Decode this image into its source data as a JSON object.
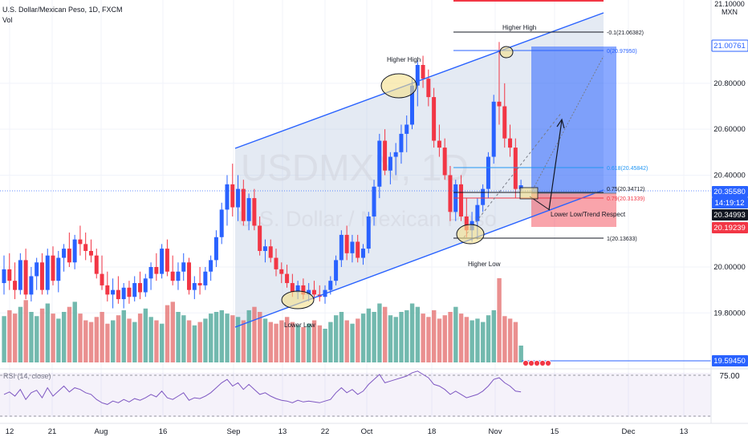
{
  "header": {
    "symbol_line": "U.S. Dollar/Mexican Peso, 1D, FXCM",
    "vol_label": "Vol"
  },
  "watermark": {
    "ticker": "USDMXN, 1D",
    "name": "U.S. Dollar / Mexican Peso"
  },
  "annotations": {
    "higher_high_1": "Higher High",
    "higher_high_2": "Higher High",
    "lower_low": "Lower Low",
    "higher_low": "Higher Low",
    "lower_low_trend": "Lower Low/Trend Respect"
  },
  "fib_labels": [
    {
      "text": "-0.1(21.06382)",
      "value": 21.06382
    },
    {
      "text": "0(20.97950)",
      "value": 20.9795
    },
    {
      "text": "0.618(20.45842)",
      "value": 20.45842
    },
    {
      "text": "0.75(20.34712)",
      "value": 20.34712
    },
    {
      "text": "0.79(20.31339)",
      "value": 20.31339
    },
    {
      "text": "1(20.13633)",
      "value": 20.13633
    }
  ],
  "price_axis": {
    "currency": "MXN",
    "top_label": "21.10000",
    "ticks": [
      "20.80000",
      "20.60000",
      "20.40000",
      "20.00000",
      "19.80000"
    ],
    "tick_values": [
      20.8,
      20.6,
      20.4,
      20.0,
      19.8
    ],
    "tags": [
      {
        "text": "21.00761",
        "value": 21.00761,
        "bg": "#2962ff",
        "fg": "#ffffff",
        "style": "outline"
      },
      {
        "text": "20.35580",
        "value": 20.3558,
        "bg": "#2962ff",
        "fg": "#ffffff",
        "style": "fill"
      },
      {
        "text": "14:19:12",
        "value": 20.3558,
        "bg": "#2962ff",
        "fg": "#ffffff",
        "style": "fill-sub"
      },
      {
        "text": "20.34993",
        "value": 20.34993,
        "bg": "#131722",
        "fg": "#ffffff",
        "style": "fill"
      },
      {
        "text": "20.19239",
        "value": 20.19239,
        "bg": "#f23645",
        "fg": "#ffffff",
        "style": "fill"
      },
      {
        "text": "19.59450",
        "value": 19.5945,
        "bg": "#2962ff",
        "fg": "#ffffff",
        "style": "fill"
      }
    ]
  },
  "time_axis": {
    "labels": [
      "12",
      "21",
      "Aug",
      "16",
      "Sep",
      "13",
      "22",
      "Oct",
      "18",
      "Nov",
      "15",
      "Dec",
      "13"
    ]
  },
  "rsi": {
    "label": "RSI (14, close)",
    "level": "75.00"
  },
  "colors": {
    "up": "#2962ff",
    "down": "#f23645",
    "vol_up": "#4fa79a",
    "vol_down": "#e57373",
    "channel": "#2962ff",
    "rsi_line": "#7e57c2",
    "highlight": "#f5e08a"
  },
  "chart_data": {
    "type": "candlestick",
    "title": "U.S. Dollar/Mexican Peso, 1D, FXCM",
    "y_range": [
      19.55,
      21.12
    ],
    "candles": [
      {
        "o": 19.93,
        "h": 20.05,
        "l": 19.88,
        "c": 19.99
      },
      {
        "o": 19.99,
        "h": 20.06,
        "l": 19.9,
        "c": 19.94
      },
      {
        "o": 19.94,
        "h": 20.02,
        "l": 19.86,
        "c": 19.9
      },
      {
        "o": 19.9,
        "h": 20.06,
        "l": 19.88,
        "c": 20.03
      },
      {
        "o": 20.03,
        "h": 20.08,
        "l": 19.86,
        "c": 19.88
      },
      {
        "o": 19.88,
        "h": 20.0,
        "l": 19.85,
        "c": 19.96
      },
      {
        "o": 19.96,
        "h": 20.04,
        "l": 19.9,
        "c": 20.02
      },
      {
        "o": 20.02,
        "h": 20.06,
        "l": 19.88,
        "c": 19.9
      },
      {
        "o": 19.9,
        "h": 20.08,
        "l": 19.88,
        "c": 20.05
      },
      {
        "o": 20.05,
        "h": 20.09,
        "l": 19.92,
        "c": 19.94
      },
      {
        "o": 19.94,
        "h": 20.07,
        "l": 19.89,
        "c": 20.04
      },
      {
        "o": 20.04,
        "h": 20.1,
        "l": 19.98,
        "c": 20.08
      },
      {
        "o": 20.08,
        "h": 20.15,
        "l": 20.0,
        "c": 20.02
      },
      {
        "o": 20.02,
        "h": 20.14,
        "l": 19.99,
        "c": 20.12
      },
      {
        "o": 20.12,
        "h": 20.18,
        "l": 20.05,
        "c": 20.1
      },
      {
        "o": 20.1,
        "h": 20.15,
        "l": 20.03,
        "c": 20.07
      },
      {
        "o": 20.07,
        "h": 20.12,
        "l": 20.02,
        "c": 20.05
      },
      {
        "o": 20.05,
        "h": 20.08,
        "l": 19.95,
        "c": 19.97
      },
      {
        "o": 19.97,
        "h": 20.05,
        "l": 19.9,
        "c": 19.92
      },
      {
        "o": 19.92,
        "h": 19.98,
        "l": 19.85,
        "c": 19.88
      },
      {
        "o": 19.88,
        "h": 19.95,
        "l": 19.82,
        "c": 19.9
      },
      {
        "o": 19.9,
        "h": 19.96,
        "l": 19.84,
        "c": 19.86
      },
      {
        "o": 19.86,
        "h": 19.93,
        "l": 19.82,
        "c": 19.91
      },
      {
        "o": 19.91,
        "h": 19.94,
        "l": 19.84,
        "c": 19.87
      },
      {
        "o": 19.87,
        "h": 19.96,
        "l": 19.85,
        "c": 19.93
      },
      {
        "o": 19.93,
        "h": 19.98,
        "l": 19.86,
        "c": 19.89
      },
      {
        "o": 19.89,
        "h": 19.97,
        "l": 19.87,
        "c": 19.95
      },
      {
        "o": 19.95,
        "h": 20.02,
        "l": 19.9,
        "c": 20.0
      },
      {
        "o": 20.0,
        "h": 20.06,
        "l": 19.94,
        "c": 19.97
      },
      {
        "o": 19.97,
        "h": 20.1,
        "l": 19.95,
        "c": 20.08
      },
      {
        "o": 20.08,
        "h": 20.12,
        "l": 19.96,
        "c": 19.98
      },
      {
        "o": 19.98,
        "h": 20.05,
        "l": 19.92,
        "c": 19.94
      },
      {
        "o": 19.94,
        "h": 20.02,
        "l": 19.9,
        "c": 19.98
      },
      {
        "o": 19.98,
        "h": 20.06,
        "l": 19.94,
        "c": 20.02
      },
      {
        "o": 20.02,
        "h": 20.04,
        "l": 19.88,
        "c": 19.9
      },
      {
        "o": 19.9,
        "h": 19.96,
        "l": 19.86,
        "c": 19.93
      },
      {
        "o": 19.93,
        "h": 20.0,
        "l": 19.88,
        "c": 19.92
      },
      {
        "o": 19.92,
        "h": 20.0,
        "l": 19.9,
        "c": 19.98
      },
      {
        "o": 19.98,
        "h": 20.05,
        "l": 19.94,
        "c": 20.03
      },
      {
        "o": 20.03,
        "h": 20.16,
        "l": 20.0,
        "c": 20.13
      },
      {
        "o": 20.13,
        "h": 20.28,
        "l": 20.1,
        "c": 20.25
      },
      {
        "o": 20.25,
        "h": 20.4,
        "l": 20.18,
        "c": 20.36
      },
      {
        "o": 20.36,
        "h": 20.45,
        "l": 20.22,
        "c": 20.26
      },
      {
        "o": 20.26,
        "h": 20.4,
        "l": 20.2,
        "c": 20.34
      },
      {
        "o": 20.34,
        "h": 20.38,
        "l": 20.18,
        "c": 20.2
      },
      {
        "o": 20.2,
        "h": 20.32,
        "l": 20.16,
        "c": 20.3
      },
      {
        "o": 20.3,
        "h": 20.34,
        "l": 20.16,
        "c": 20.18
      },
      {
        "o": 20.18,
        "h": 20.22,
        "l": 20.05,
        "c": 20.07
      },
      {
        "o": 20.07,
        "h": 20.12,
        "l": 20.02,
        "c": 20.09
      },
      {
        "o": 20.09,
        "h": 20.12,
        "l": 20.02,
        "c": 20.04
      },
      {
        "o": 20.04,
        "h": 20.08,
        "l": 19.96,
        "c": 19.99
      },
      {
        "o": 19.99,
        "h": 20.02,
        "l": 19.93,
        "c": 19.97
      },
      {
        "o": 19.97,
        "h": 20.01,
        "l": 19.91,
        "c": 19.93
      },
      {
        "o": 19.93,
        "h": 19.97,
        "l": 19.87,
        "c": 19.89
      },
      {
        "o": 19.89,
        "h": 19.94,
        "l": 19.86,
        "c": 19.92
      },
      {
        "o": 19.92,
        "h": 19.95,
        "l": 19.86,
        "c": 19.88
      },
      {
        "o": 19.88,
        "h": 19.93,
        "l": 19.85,
        "c": 19.9
      },
      {
        "o": 19.9,
        "h": 19.94,
        "l": 19.86,
        "c": 19.88
      },
      {
        "o": 19.88,
        "h": 19.92,
        "l": 19.85,
        "c": 19.87
      },
      {
        "o": 19.87,
        "h": 19.92,
        "l": 19.84,
        "c": 19.9
      },
      {
        "o": 19.9,
        "h": 19.96,
        "l": 19.88,
        "c": 19.94
      },
      {
        "o": 19.94,
        "h": 20.05,
        "l": 19.92,
        "c": 20.03
      },
      {
        "o": 20.03,
        "h": 20.16,
        "l": 20.0,
        "c": 20.14
      },
      {
        "o": 20.14,
        "h": 20.18,
        "l": 20.03,
        "c": 20.06
      },
      {
        "o": 20.06,
        "h": 20.14,
        "l": 20.02,
        "c": 20.11
      },
      {
        "o": 20.11,
        "h": 20.14,
        "l": 20.02,
        "c": 20.04
      },
      {
        "o": 20.04,
        "h": 20.1,
        "l": 20.01,
        "c": 20.08
      },
      {
        "o": 20.08,
        "h": 20.24,
        "l": 20.06,
        "c": 20.22
      },
      {
        "o": 20.22,
        "h": 20.38,
        "l": 20.18,
        "c": 20.35
      },
      {
        "o": 20.35,
        "h": 20.58,
        "l": 20.3,
        "c": 20.55
      },
      {
        "o": 20.55,
        "h": 20.6,
        "l": 20.4,
        "c": 20.42
      },
      {
        "o": 20.42,
        "h": 20.5,
        "l": 20.36,
        "c": 20.48
      },
      {
        "o": 20.48,
        "h": 20.54,
        "l": 20.4,
        "c": 20.5
      },
      {
        "o": 20.5,
        "h": 20.62,
        "l": 20.45,
        "c": 20.58
      },
      {
        "o": 20.58,
        "h": 20.66,
        "l": 20.5,
        "c": 20.62
      },
      {
        "o": 20.62,
        "h": 20.82,
        "l": 20.6,
        "c": 20.79
      },
      {
        "o": 20.79,
        "h": 20.9,
        "l": 20.7,
        "c": 20.88
      },
      {
        "o": 20.88,
        "h": 20.92,
        "l": 20.78,
        "c": 20.82
      },
      {
        "o": 20.82,
        "h": 20.86,
        "l": 20.7,
        "c": 20.74
      },
      {
        "o": 20.74,
        "h": 20.78,
        "l": 20.52,
        "c": 20.55
      },
      {
        "o": 20.55,
        "h": 20.62,
        "l": 20.48,
        "c": 20.52
      },
      {
        "o": 20.52,
        "h": 20.56,
        "l": 20.38,
        "c": 20.4
      },
      {
        "o": 20.4,
        "h": 20.44,
        "l": 20.2,
        "c": 20.24
      },
      {
        "o": 20.24,
        "h": 20.38,
        "l": 20.2,
        "c": 20.36
      },
      {
        "o": 20.36,
        "h": 20.4,
        "l": 20.2,
        "c": 20.22
      },
      {
        "o": 20.22,
        "h": 20.3,
        "l": 20.13,
        "c": 20.16
      },
      {
        "o": 20.16,
        "h": 20.24,
        "l": 20.11,
        "c": 20.2
      },
      {
        "o": 20.2,
        "h": 20.3,
        "l": 20.12,
        "c": 20.27
      },
      {
        "o": 20.27,
        "h": 20.36,
        "l": 20.24,
        "c": 20.34
      },
      {
        "o": 20.34,
        "h": 20.5,
        "l": 20.3,
        "c": 20.48
      },
      {
        "o": 20.48,
        "h": 20.75,
        "l": 20.45,
        "c": 20.72
      },
      {
        "o": 20.72,
        "h": 20.98,
        "l": 20.62,
        "c": 20.7
      },
      {
        "o": 20.7,
        "h": 20.8,
        "l": 20.52,
        "c": 20.56
      },
      {
        "o": 20.56,
        "h": 20.62,
        "l": 20.48,
        "c": 20.52
      },
      {
        "o": 20.52,
        "h": 20.56,
        "l": 20.3,
        "c": 20.34
      },
      {
        "o": 20.34,
        "h": 20.38,
        "l": 20.33,
        "c": 20.356
      }
    ],
    "volume": [
      0.55,
      0.62,
      0.58,
      0.66,
      0.74,
      0.6,
      0.55,
      0.64,
      0.7,
      0.58,
      0.52,
      0.6,
      0.66,
      0.72,
      0.58,
      0.5,
      0.48,
      0.54,
      0.6,
      0.46,
      0.5,
      0.56,
      0.62,
      0.52,
      0.48,
      0.58,
      0.64,
      0.54,
      0.5,
      0.46,
      0.68,
      0.72,
      0.6,
      0.56,
      0.5,
      0.44,
      0.48,
      0.52,
      0.58,
      0.6,
      0.62,
      0.58,
      0.56,
      0.54,
      0.5,
      0.62,
      0.66,
      0.6,
      0.52,
      0.48,
      0.46,
      0.5,
      0.54,
      0.48,
      0.44,
      0.42,
      0.46,
      0.5,
      0.44,
      0.4,
      0.48,
      0.56,
      0.6,
      0.5,
      0.46,
      0.52,
      0.58,
      0.64,
      0.6,
      0.7,
      0.66,
      0.56,
      0.54,
      0.6,
      0.62,
      0.7,
      0.66,
      0.58,
      0.54,
      0.62,
      0.52,
      0.56,
      0.6,
      0.66,
      0.58,
      0.54,
      0.5,
      0.52,
      0.48,
      0.56,
      0.62,
      1.0,
      0.55,
      0.52,
      0.48,
      0.2
    ],
    "rsi": [
      52,
      55,
      50,
      58,
      46,
      54,
      57,
      48,
      60,
      50,
      56,
      62,
      55,
      60,
      58,
      54,
      52,
      46,
      42,
      40,
      44,
      42,
      46,
      43,
      47,
      45,
      48,
      52,
      49,
      56,
      48,
      46,
      50,
      54,
      45,
      48,
      47,
      50,
      54,
      60,
      66,
      70,
      62,
      66,
      58,
      64,
      58,
      52,
      54,
      50,
      47,
      45,
      44,
      42,
      45,
      43,
      44,
      43,
      42,
      44,
      46,
      54,
      60,
      54,
      58,
      52,
      56,
      64,
      70,
      76,
      66,
      68,
      70,
      72,
      74,
      78,
      80,
      76,
      72,
      64,
      62,
      58,
      52,
      56,
      52,
      48,
      50,
      52,
      56,
      62,
      70,
      72,
      66,
      62,
      56,
      55
    ],
    "rsi_level": 75
  }
}
